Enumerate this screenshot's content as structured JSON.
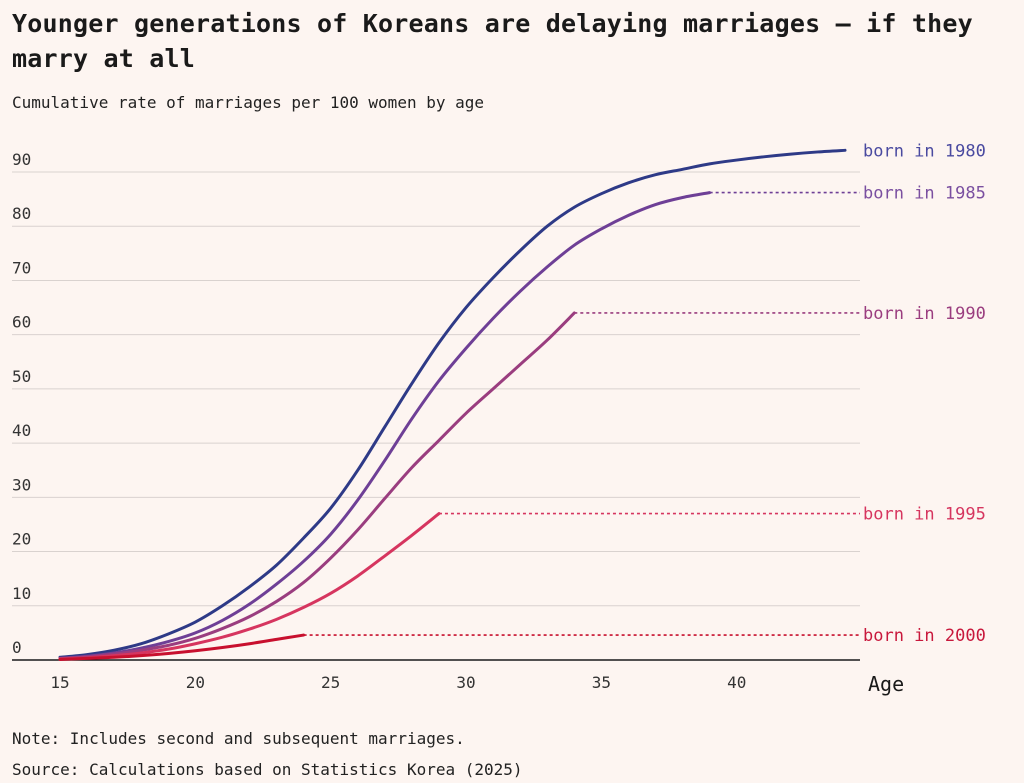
{
  "title": "Younger generations of Koreans are delaying marriages – if they marry at all",
  "subtitle": "Cumulative rate of marriages per 100 women by age",
  "note": "Note: Includes second and subsequent marriages.",
  "source": "Source: Calculations based on Statistics Korea (2025)",
  "chart_data": {
    "type": "line",
    "xlabel": "Age",
    "ylabel": "",
    "xlim": [
      15,
      44
    ],
    "ylim": [
      0,
      90
    ],
    "xticks": [
      15,
      20,
      25,
      30,
      35,
      40
    ],
    "yticks": [
      0,
      10,
      20,
      30,
      40,
      50,
      60,
      70,
      80,
      90
    ],
    "grid": true,
    "legend": "direct labels at right",
    "series": [
      {
        "name": "born in 1980",
        "color": "#2e3a87",
        "x": [
          15,
          16,
          17,
          18,
          19,
          20,
          21,
          22,
          23,
          24,
          25,
          26,
          27,
          28,
          29,
          30,
          31,
          32,
          33,
          34,
          35,
          36,
          37,
          38,
          39,
          40,
          41,
          42,
          43,
          44
        ],
        "values": [
          0.5,
          1.0,
          1.8,
          3.0,
          4.8,
          7.0,
          10.0,
          13.5,
          17.5,
          22.5,
          28.0,
          35.0,
          43.0,
          51.0,
          58.5,
          65.0,
          70.5,
          75.5,
          80.0,
          83.5,
          86.0,
          88.0,
          89.5,
          90.5,
          91.5,
          92.2,
          92.8,
          93.3,
          93.7,
          94.0
        ]
      },
      {
        "name": "born in 1985",
        "color": "#6e3f96",
        "x": [
          15,
          16,
          17,
          18,
          19,
          20,
          21,
          22,
          23,
          24,
          25,
          26,
          27,
          28,
          29,
          30,
          31,
          32,
          33,
          34,
          35,
          36,
          37,
          38,
          39
        ],
        "values": [
          0.3,
          0.7,
          1.3,
          2.2,
          3.4,
          5.0,
          7.3,
          10.3,
          14.0,
          18.2,
          23.2,
          29.5,
          36.8,
          44.5,
          51.5,
          57.5,
          63.0,
          68.0,
          72.5,
          76.5,
          79.5,
          82.0,
          84.0,
          85.3,
          86.2
        ],
        "extend_to": 44
      },
      {
        "name": "born in 1990",
        "color": "#9a3d7f",
        "x": [
          15,
          16,
          17,
          18,
          19,
          20,
          21,
          22,
          23,
          24,
          25,
          26,
          27,
          28,
          29,
          30,
          31,
          32,
          33,
          34
        ],
        "values": [
          0.3,
          0.6,
          1.1,
          1.8,
          2.7,
          4.0,
          5.8,
          8.0,
          10.8,
          14.3,
          18.8,
          24.0,
          29.8,
          35.5,
          40.5,
          45.5,
          50.0,
          54.5,
          59.0,
          64.0
        ],
        "extend_to": 44
      },
      {
        "name": "born in 1995",
        "color": "#d6355f",
        "x": [
          15,
          16,
          17,
          18,
          19,
          20,
          21,
          22,
          23,
          24,
          25,
          26,
          27,
          28,
          29
        ],
        "values": [
          0.2,
          0.4,
          0.8,
          1.3,
          2.0,
          3.0,
          4.2,
          5.7,
          7.5,
          9.7,
          12.3,
          15.5,
          19.2,
          23.0,
          27.0
        ],
        "extend_to": 44
      },
      {
        "name": "born in 2000",
        "color": "#c8102e",
        "x": [
          15,
          16,
          17,
          18,
          19,
          20,
          21,
          22,
          23,
          24
        ],
        "values": [
          0.1,
          0.3,
          0.5,
          0.8,
          1.2,
          1.7,
          2.3,
          3.0,
          3.8,
          4.6
        ],
        "extend_to": 44
      }
    ],
    "label_colors": {
      "born in 1980": "#4a4aa0",
      "born in 1985": "#7a4fa0",
      "born in 1990": "#9a3d7f",
      "born in 1995": "#d6355f",
      "born in 2000": "#c8183c"
    }
  }
}
